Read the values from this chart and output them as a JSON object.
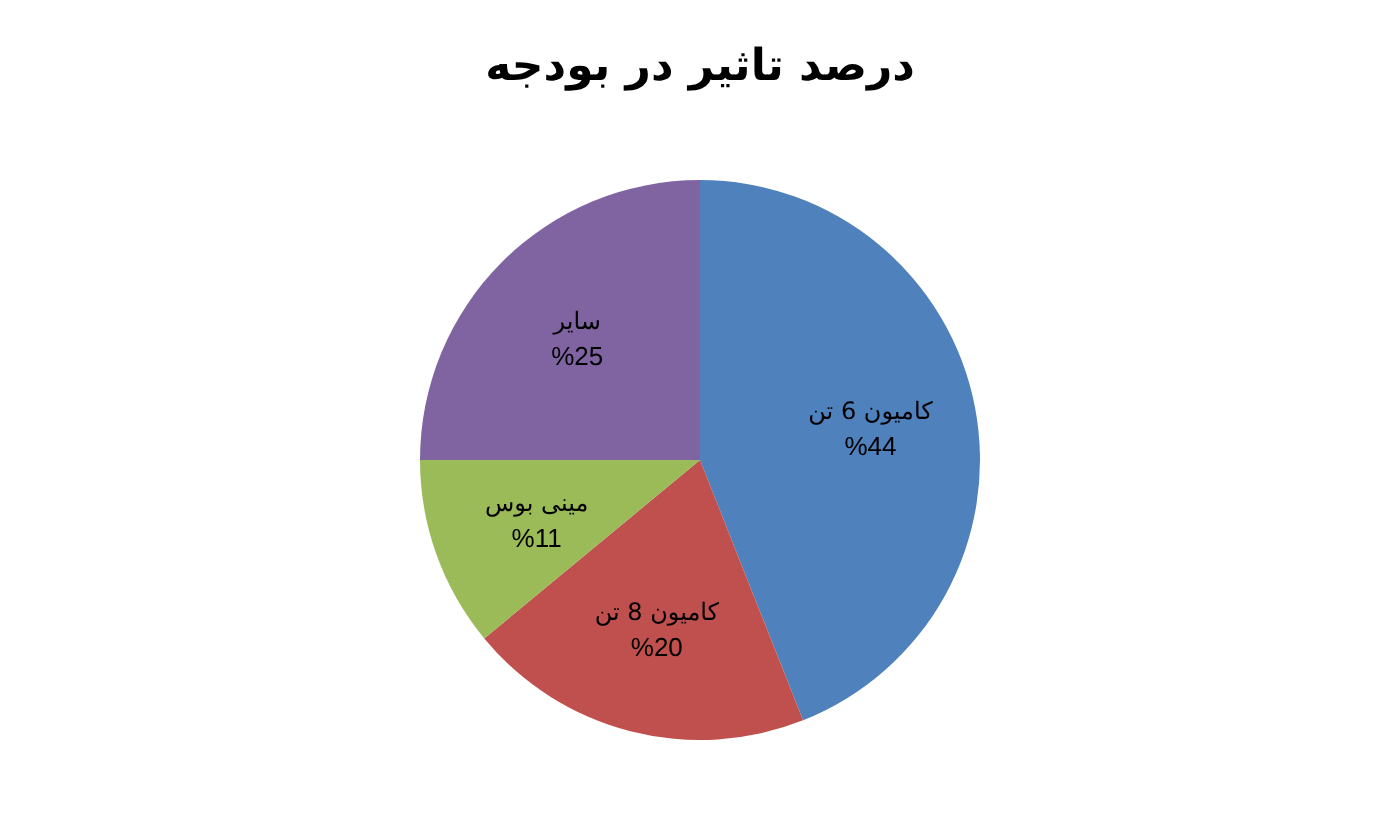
{
  "chart_data": {
    "type": "pie",
    "title": "درصد تاثیر در بودجه",
    "categories": [
      "کامیون 6 تن",
      "کامیون 8 تن",
      "مینی بوس",
      "سایر"
    ],
    "values": [
      44,
      20,
      11,
      25
    ],
    "colors": [
      "#4f81bd",
      "#c0504d",
      "#9bbb59",
      "#8064a2"
    ],
    "value_labels": [
      "%44",
      "%20",
      "%11",
      "%25"
    ]
  }
}
